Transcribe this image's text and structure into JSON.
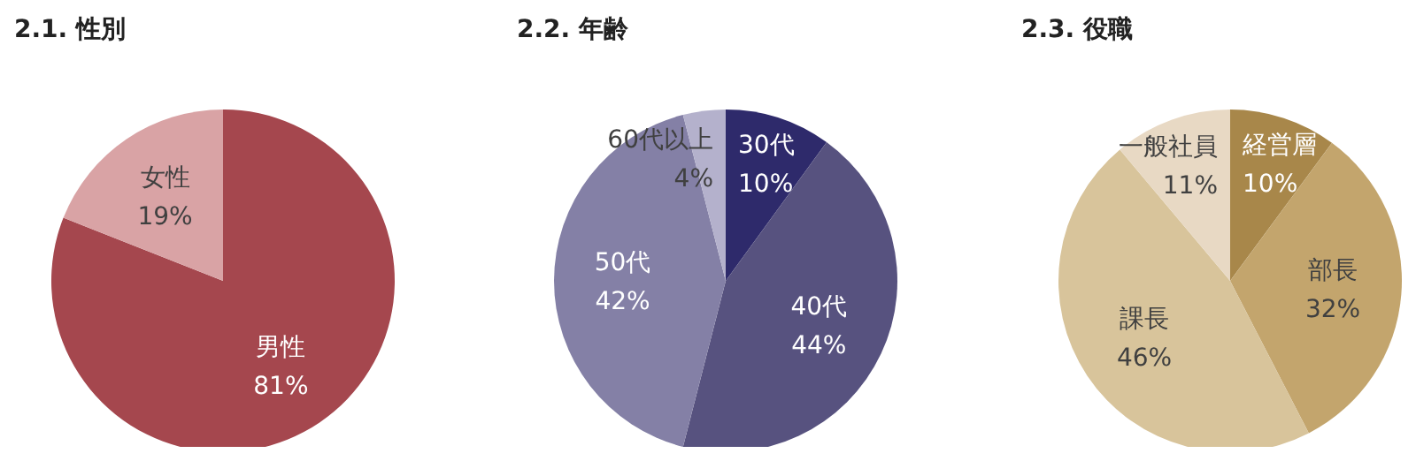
{
  "chart_data": [
    {
      "type": "pie",
      "title": "2.1. 性別",
      "categories": [
        "男性",
        "女性"
      ],
      "values": [
        81,
        19
      ],
      "value_labels": [
        "81%",
        "19%"
      ],
      "colors": [
        "#a5474e",
        "#d9a3a5"
      ]
    },
    {
      "type": "pie",
      "title": "2.2. 年齢",
      "categories": [
        "30代",
        "40代",
        "50代",
        "60代以上"
      ],
      "values": [
        10,
        44,
        42,
        4
      ],
      "value_labels": [
        "10%",
        "44%",
        "42%",
        "4%"
      ],
      "colors": [
        "#2e2a6b",
        "#57527f",
        "#8480a6",
        "#b4b1cc"
      ]
    },
    {
      "type": "pie",
      "title": "2.3. 役職",
      "categories": [
        "経営層",
        "部長",
        "課長",
        "一般社員"
      ],
      "values": [
        10,
        32,
        46,
        11
      ],
      "value_labels": [
        "10%",
        "32%",
        "46%",
        "11%"
      ],
      "colors": [
        "#a8874a",
        "#c3a56d",
        "#d8c49b",
        "#e8d9c4"
      ]
    }
  ]
}
